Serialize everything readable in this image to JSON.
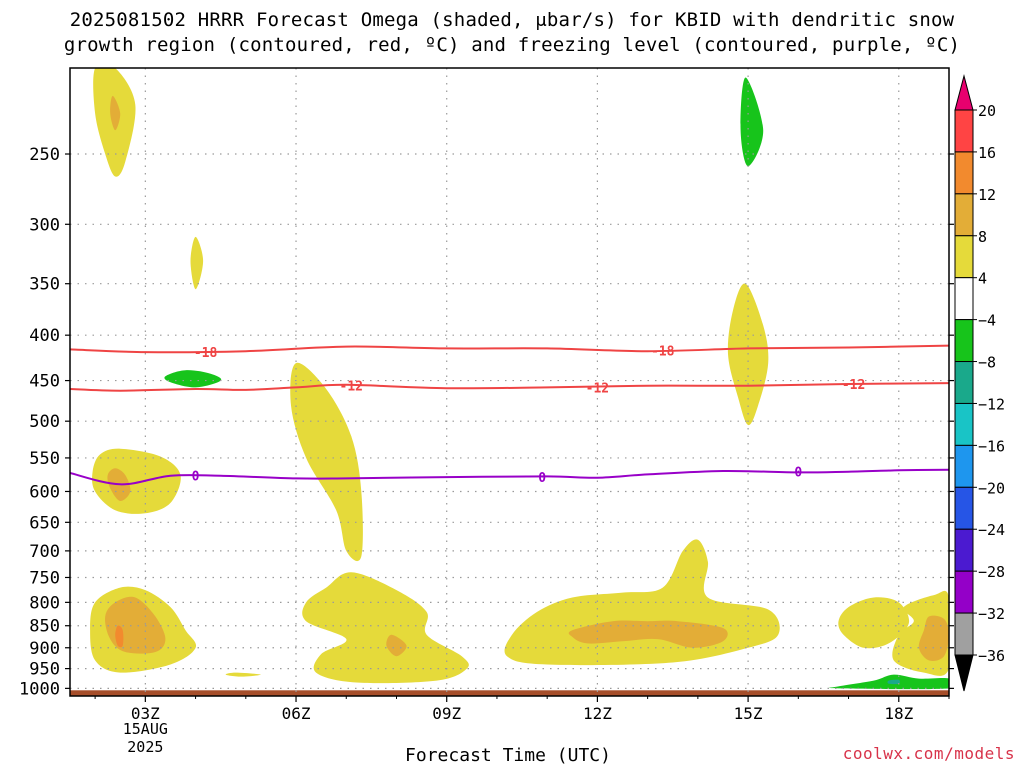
{
  "chart_data": {
    "type": "heatmap",
    "title_line1": "2025081502 HRRR Forecast Omega (shaded, μbar/s) for KBID with dendritic snow",
    "title_line2": "growth region (contoured, red, ºC) and freezing level (contoured, purple, ºC)",
    "xlabel": "Forecast Time (UTC)",
    "credit": "coolwx.com/models",
    "x_ticks": [
      "03Z",
      "06Z",
      "09Z",
      "12Z",
      "15Z",
      "18Z"
    ],
    "x_subticks": [
      "15AUG",
      "2025"
    ],
    "x_range_hours": [
      1.5,
      19.0
    ],
    "y_ticks": [
      250,
      300,
      350,
      400,
      450,
      500,
      550,
      600,
      650,
      700,
      750,
      800,
      850,
      900,
      950,
      1000
    ],
    "y_range_hpa": [
      200,
      1020
    ],
    "y_scale": "log-pressure",
    "grid": true,
    "colorbar": {
      "labels": [
        "20",
        "16",
        "12",
        "8",
        "4",
        "−4",
        "−8",
        "−12",
        "−16",
        "−20",
        "−24",
        "−28",
        "−32",
        "−36"
      ],
      "colors": [
        "#e8006e",
        "#ff4444",
        "#f28a2e",
        "#e3ad37",
        "#e5da3a",
        "#ffffff",
        "#17c41b",
        "#1aa98b",
        "#19c4c6",
        "#1e96ee",
        "#2655e6",
        "#4b1ad0",
        "#9400c8",
        "#a0a0a0",
        "#000000"
      ]
    },
    "contours": [
      {
        "label": "-18",
        "color": "#ef4444",
        "points": [
          [
            1.5,
            415
          ],
          [
            3.0,
            418
          ],
          [
            5.0,
            417
          ],
          [
            7.0,
            412
          ],
          [
            9.0,
            414
          ],
          [
            11.0,
            414
          ],
          [
            13.0,
            417
          ],
          [
            15.0,
            414
          ],
          [
            17.0,
            413
          ],
          [
            19.0,
            411
          ]
        ],
        "label_at": [
          [
            4.2,
            418
          ],
          [
            13.3,
            416
          ]
        ]
      },
      {
        "label": "-12",
        "color": "#ef4444",
        "points": [
          [
            1.5,
            460
          ],
          [
            2.5,
            462
          ],
          [
            4.0,
            460
          ],
          [
            5.0,
            461
          ],
          [
            6.0,
            458
          ],
          [
            7.0,
            455
          ],
          [
            9.0,
            459
          ],
          [
            11.0,
            458
          ],
          [
            13.0,
            456
          ],
          [
            15.0,
            456
          ],
          [
            17.0,
            454
          ],
          [
            19.0,
            453
          ]
        ],
        "label_at": [
          [
            7.1,
            456
          ],
          [
            12.0,
            458
          ],
          [
            17.1,
            454
          ]
        ]
      },
      {
        "label": "0",
        "color": "#9800c8",
        "points": [
          [
            1.5,
            572
          ],
          [
            2.5,
            589
          ],
          [
            3.5,
            576
          ],
          [
            4.5,
            576
          ],
          [
            6.0,
            580
          ],
          [
            7.0,
            580
          ],
          [
            9.0,
            578
          ],
          [
            11.0,
            577
          ],
          [
            12.0,
            579
          ],
          [
            13.0,
            574
          ],
          [
            14.5,
            569
          ],
          [
            16.0,
            571
          ],
          [
            17.0,
            570
          ],
          [
            18.0,
            568
          ],
          [
            19.0,
            567
          ]
        ],
        "label_at": [
          [
            4.0,
            576
          ],
          [
            10.9,
            578
          ],
          [
            16.0,
            570
          ]
        ]
      }
    ],
    "regions": [
      {
        "level": "4..8",
        "color": "#e5da3a",
        "points": [
          [
            2.0,
            200
          ],
          [
            2.4,
            200
          ],
          [
            2.8,
            220
          ],
          [
            2.6,
            255
          ],
          [
            2.4,
            265
          ],
          [
            2.2,
            250
          ],
          [
            2.0,
            225
          ]
        ]
      },
      {
        "level": "8..12",
        "color": "#e3ad37",
        "points": [
          [
            2.35,
            215
          ],
          [
            2.5,
            225
          ],
          [
            2.4,
            235
          ],
          [
            2.3,
            225
          ]
        ]
      },
      {
        "level": "4..8",
        "color": "#e5da3a",
        "points": [
          [
            4.0,
            310
          ],
          [
            4.15,
            330
          ],
          [
            4.0,
            355
          ],
          [
            3.9,
            330
          ]
        ]
      },
      {
        "level": "-4..-8",
        "color": "#17c41b",
        "points": [
          [
            3.4,
            445
          ],
          [
            3.8,
            438
          ],
          [
            4.3,
            442
          ],
          [
            4.5,
            450
          ],
          [
            4.0,
            458
          ],
          [
            3.5,
            452
          ]
        ]
      },
      {
        "level": "4..8",
        "color": "#e5da3a",
        "points": [
          [
            6.0,
            430
          ],
          [
            6.6,
            460
          ],
          [
            7.1,
            520
          ],
          [
            7.3,
            600
          ],
          [
            7.3,
            710
          ],
          [
            7.0,
            700
          ],
          [
            6.8,
            630
          ],
          [
            6.2,
            550
          ],
          [
            5.9,
            480
          ]
        ]
      },
      {
        "level": "4..8",
        "color": "#e5da3a",
        "points": [
          [
            2.1,
            545
          ],
          [
            2.5,
            537
          ],
          [
            3.3,
            548
          ],
          [
            3.7,
            575
          ],
          [
            3.5,
            618
          ],
          [
            3.0,
            635
          ],
          [
            2.4,
            630
          ],
          [
            2.0,
            600
          ],
          [
            1.95,
            570
          ]
        ]
      },
      {
        "level": "8..12",
        "color": "#e3ad37",
        "points": [
          [
            2.4,
            565
          ],
          [
            2.6,
            575
          ],
          [
            2.7,
            600
          ],
          [
            2.5,
            615
          ],
          [
            2.3,
            595
          ],
          [
            2.25,
            575
          ]
        ]
      },
      {
        "level": "4..8",
        "color": "#e5da3a",
        "points": [
          [
            2.0,
            800
          ],
          [
            2.5,
            770
          ],
          [
            3.0,
            775
          ],
          [
            3.5,
            810
          ],
          [
            3.8,
            860
          ],
          [
            4.0,
            900
          ],
          [
            3.5,
            940
          ],
          [
            2.5,
            960
          ],
          [
            2.0,
            930
          ],
          [
            1.9,
            860
          ]
        ]
      },
      {
        "level": "8..12",
        "color": "#e3ad37",
        "points": [
          [
            2.4,
            800
          ],
          [
            2.8,
            790
          ],
          [
            3.2,
            830
          ],
          [
            3.4,
            880
          ],
          [
            3.2,
            910
          ],
          [
            2.6,
            910
          ],
          [
            2.3,
            880
          ],
          [
            2.2,
            830
          ]
        ]
      },
      {
        "level": "12..16",
        "color": "#f28a2e",
        "points": [
          [
            2.45,
            850
          ],
          [
            2.55,
            860
          ],
          [
            2.55,
            895
          ],
          [
            2.45,
            895
          ],
          [
            2.4,
            870
          ]
        ]
      },
      {
        "level": "4..8",
        "color": "#e5da3a",
        "points": [
          [
            4.8,
            960
          ],
          [
            5.3,
            965
          ],
          [
            4.9,
            970
          ],
          [
            4.6,
            965
          ]
        ]
      },
      {
        "level": "4..8",
        "color": "#e5da3a",
        "points": [
          [
            7.1,
            740
          ],
          [
            8.0,
            775
          ],
          [
            8.6,
            820
          ],
          [
            8.6,
            870
          ],
          [
            9.3,
            920
          ],
          [
            9.4,
            950
          ],
          [
            8.8,
            980
          ],
          [
            7.2,
            985
          ],
          [
            6.4,
            960
          ],
          [
            6.5,
            915
          ],
          [
            7.0,
            880
          ],
          [
            6.2,
            840
          ],
          [
            6.2,
            800
          ],
          [
            6.6,
            770
          ]
        ]
      },
      {
        "level": "8..12",
        "color": "#e3ad37",
        "points": [
          [
            7.9,
            870
          ],
          [
            8.2,
            895
          ],
          [
            8.0,
            920
          ],
          [
            7.8,
            895
          ]
        ]
      },
      {
        "level": "4..8",
        "color": "#e5da3a",
        "points": [
          [
            10.8,
            820
          ],
          [
            11.5,
            790
          ],
          [
            12.5,
            780
          ],
          [
            13.3,
            770
          ],
          [
            13.7,
            700
          ],
          [
            14.0,
            680
          ],
          [
            14.2,
            720
          ],
          [
            14.2,
            790
          ],
          [
            15.4,
            815
          ],
          [
            15.6,
            870
          ],
          [
            15.0,
            900
          ],
          [
            13.5,
            935
          ],
          [
            11.0,
            940
          ],
          [
            10.2,
            920
          ],
          [
            10.3,
            870
          ]
        ]
      },
      {
        "level": "8..12",
        "color": "#e3ad37",
        "points": [
          [
            11.5,
            860
          ],
          [
            12.3,
            840
          ],
          [
            13.0,
            840
          ],
          [
            13.6,
            840
          ],
          [
            14.5,
            855
          ],
          [
            14.5,
            885
          ],
          [
            13.9,
            900
          ],
          [
            13.2,
            880
          ],
          [
            12.5,
            885
          ],
          [
            11.8,
            890
          ],
          [
            11.5,
            875
          ]
        ]
      },
      {
        "level": "4..8",
        "color": "#e5da3a",
        "points": [
          [
            14.95,
            350
          ],
          [
            15.3,
            390
          ],
          [
            15.4,
            430
          ],
          [
            15.2,
            480
          ],
          [
            15.0,
            505
          ],
          [
            14.8,
            470
          ],
          [
            14.6,
            420
          ],
          [
            14.7,
            375
          ]
        ]
      },
      {
        "level": "-4..-8",
        "color": "#17c41b",
        "points": [
          [
            14.95,
            205
          ],
          [
            15.3,
            235
          ],
          [
            15.0,
            258
          ],
          [
            14.85,
            235
          ]
        ]
      },
      {
        "level": "4..8",
        "color": "#e5da3a",
        "points": [
          [
            17.0,
            810
          ],
          [
            17.5,
            790
          ],
          [
            18.0,
            800
          ],
          [
            18.2,
            845
          ],
          [
            17.8,
            890
          ],
          [
            17.3,
            900
          ],
          [
            16.9,
            870
          ],
          [
            16.8,
            840
          ]
        ]
      },
      {
        "level": "4..8",
        "color": "#e5da3a",
        "points": [
          [
            18.1,
            810
          ],
          [
            18.7,
            785
          ],
          [
            19.0,
            790
          ],
          [
            19.0,
            950
          ],
          [
            18.5,
            960
          ],
          [
            17.9,
            930
          ],
          [
            18.0,
            870
          ],
          [
            18.3,
            840
          ]
        ]
      },
      {
        "level": "8..12",
        "color": "#e3ad37",
        "points": [
          [
            18.6,
            830
          ],
          [
            18.9,
            835
          ],
          [
            19.0,
            870
          ],
          [
            18.9,
            920
          ],
          [
            18.6,
            930
          ],
          [
            18.4,
            900
          ],
          [
            18.5,
            860
          ]
        ]
      },
      {
        "level": "-4..-8",
        "color": "#17c41b",
        "points": [
          [
            16.8,
            995
          ],
          [
            17.5,
            980
          ],
          [
            17.9,
            965
          ],
          [
            18.4,
            975
          ],
          [
            19.0,
            975
          ],
          [
            19.0,
            1000
          ],
          [
            16.8,
            1000
          ]
        ]
      },
      {
        "level": "-8..-12",
        "color": "#1aa98b",
        "points": [
          [
            17.8,
            980
          ],
          [
            18.0,
            978
          ],
          [
            18.0,
            988
          ],
          [
            17.8,
            988
          ]
        ]
      }
    ],
    "ground_color": "#a64e2a",
    "ground_top_hpa": 1005
  }
}
